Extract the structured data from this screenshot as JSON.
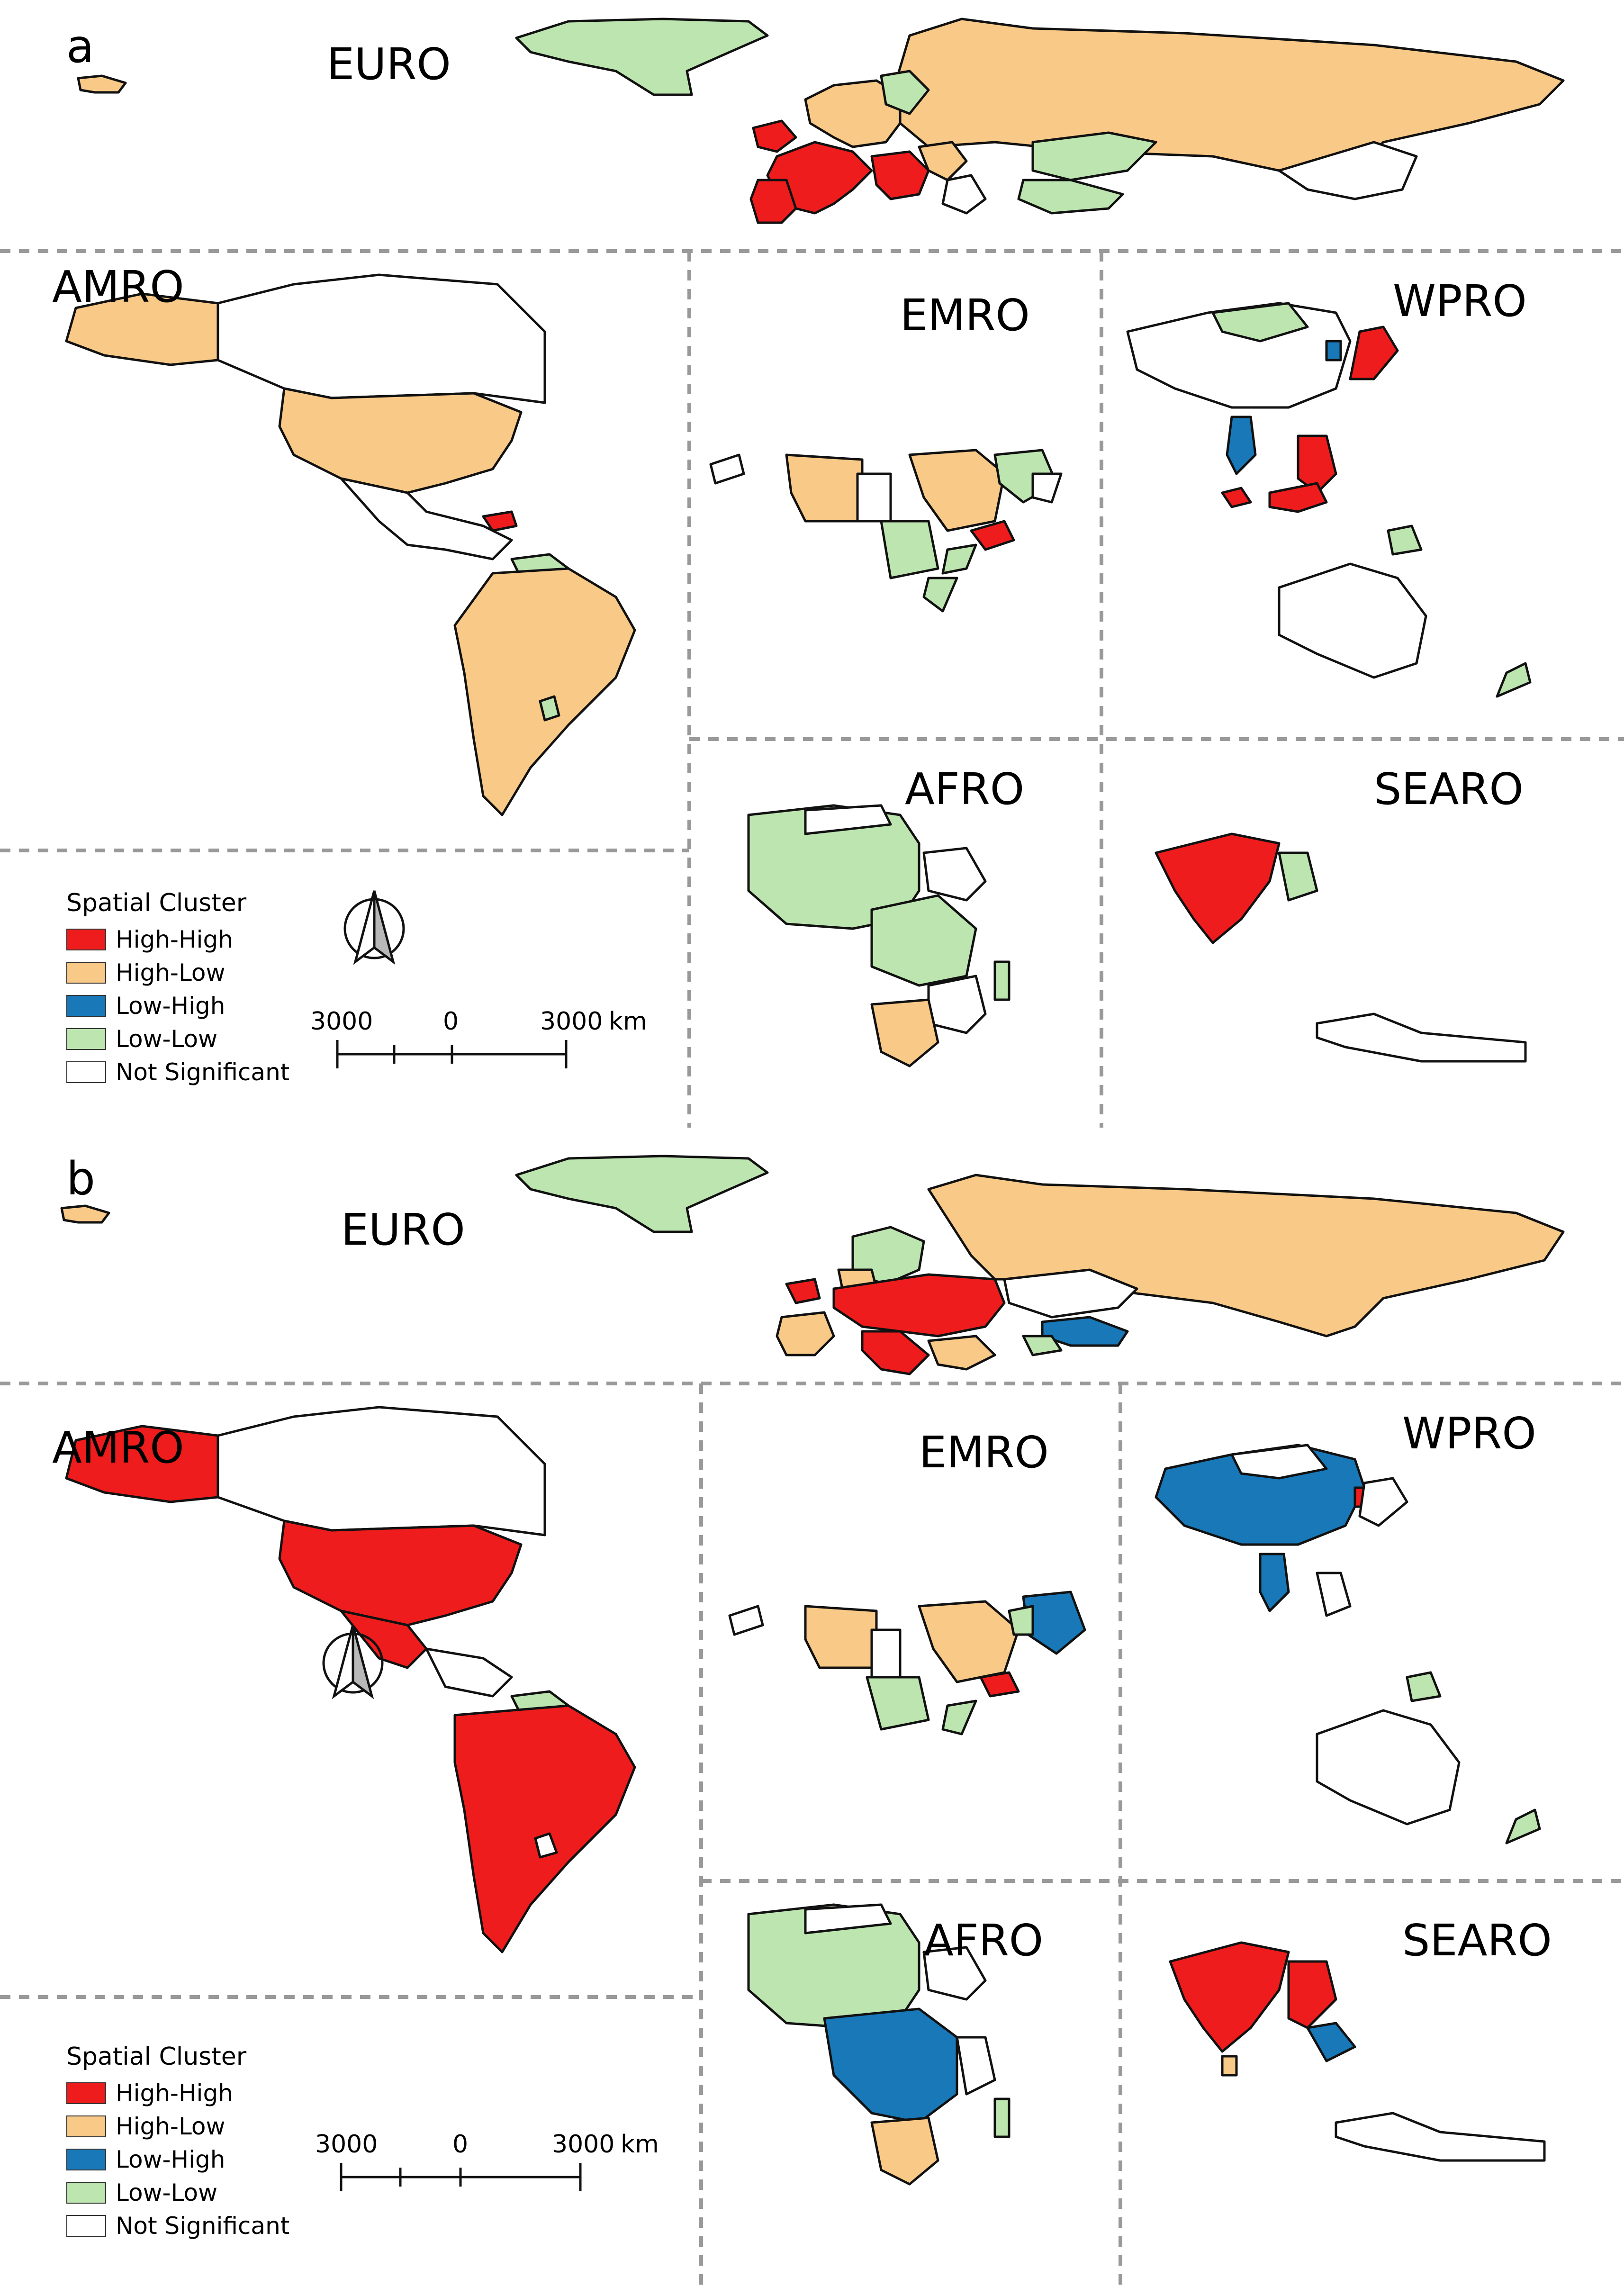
{
  "colors": {
    "High-High": "#ee1c1c",
    "High-Low": "#f8c987",
    "Low-High": "#1878b8",
    "Low-Low": "#bde5b0",
    "Not Significant": "#ffffff"
  },
  "panels": [
    {
      "letter": "a",
      "regions": [
        "EURO",
        "AMRO",
        "EMRO",
        "WPRO",
        "AFRO",
        "SEARO"
      ],
      "legend": {
        "title": "Spatial Cluster",
        "items": [
          "High-High",
          "High-Low",
          "Low-High",
          "Low-Low",
          "Not Significant"
        ]
      },
      "scale_bar": {
        "left": "3000",
        "mid": "0",
        "right": "3000",
        "unit": "km"
      },
      "north_arrow": "north-arrow-icon"
    },
    {
      "letter": "b",
      "regions": [
        "EURO",
        "AMRO",
        "EMRO",
        "WPRO",
        "AFRO",
        "SEARO"
      ],
      "legend": {
        "title": "Spatial Cluster",
        "items": [
          "High-High",
          "High-Low",
          "Low-High",
          "Low-Low",
          "Not Significant"
        ]
      },
      "scale_bar": {
        "left": "3000",
        "mid": "0",
        "right": "3000",
        "unit": "km"
      },
      "north_arrow": "north-arrow-icon"
    }
  ]
}
